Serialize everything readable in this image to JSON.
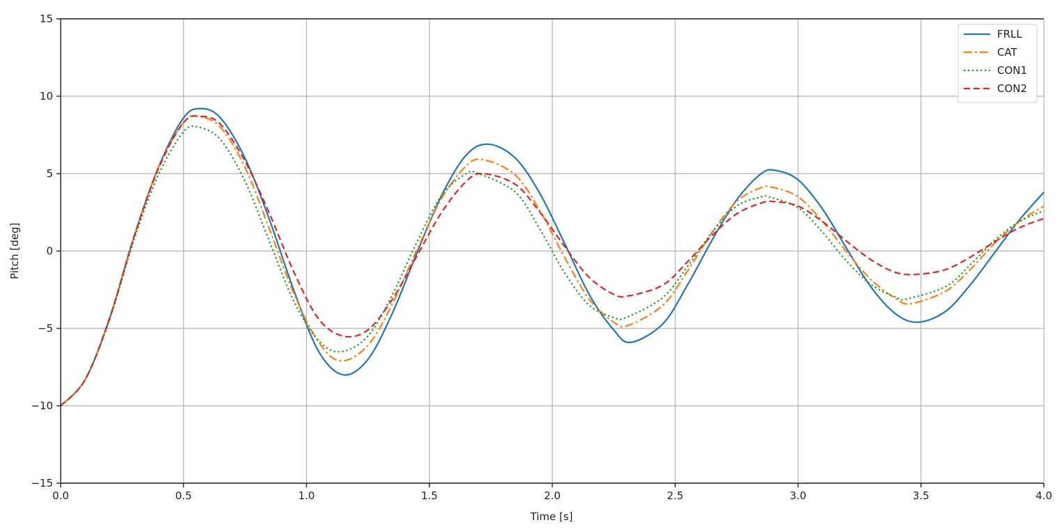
{
  "chart_data": {
    "type": "line",
    "title": "",
    "xlabel": "Time [s]",
    "ylabel": "Pitch [deg]",
    "xlim": [
      0.0,
      4.0
    ],
    "ylim": [
      -15,
      15
    ],
    "xticks": [
      0.0,
      0.5,
      1.0,
      1.5,
      2.0,
      2.5,
      3.0,
      3.5,
      4.0
    ],
    "xtick_labels": [
      "0.0",
      "0.5",
      "1.0",
      "1.5",
      "2.0",
      "2.5",
      "3.0",
      "3.5",
      "4.0"
    ],
    "yticks": [
      -15,
      -10,
      -5,
      0,
      5,
      10,
      15
    ],
    "ytick_labels": [
      "−15",
      "−10",
      "−5",
      "0",
      "5",
      "10",
      "15"
    ],
    "grid": true,
    "legend_position": "top-right",
    "series": [
      {
        "name": "FRLL",
        "color": "#1f77b4",
        "dash": "solid",
        "x": [
          0.0,
          0.1,
          0.2,
          0.3,
          0.4,
          0.5,
          0.57,
          0.65,
          0.75,
          0.85,
          0.95,
          1.05,
          1.15,
          1.25,
          1.35,
          1.45,
          1.55,
          1.65,
          1.74,
          1.85,
          1.95,
          2.05,
          2.15,
          2.25,
          2.32,
          2.45,
          2.55,
          2.65,
          2.75,
          2.85,
          2.91,
          3.0,
          3.1,
          3.2,
          3.3,
          3.4,
          3.49,
          3.6,
          3.7,
          3.8,
          3.9,
          4.0
        ],
        "y": [
          -10.0,
          -8.3,
          -4.3,
          1.0,
          5.5,
          8.6,
          9.2,
          8.6,
          6.0,
          2.0,
          -2.6,
          -6.5,
          -8.0,
          -7.0,
          -4.0,
          -0.1,
          3.6,
          6.2,
          6.9,
          6.0,
          3.7,
          0.5,
          -2.8,
          -5.1,
          -5.9,
          -4.7,
          -2.2,
          0.7,
          3.3,
          5.0,
          5.2,
          4.6,
          2.7,
          0.1,
          -2.4,
          -4.1,
          -4.6,
          -3.9,
          -2.2,
          -0.1,
          2.0,
          3.8
        ]
      },
      {
        "name": "CAT",
        "color": "#ff7f0e",
        "dash": "dashdot",
        "x": [
          0.0,
          0.1,
          0.2,
          0.3,
          0.4,
          0.5,
          0.56,
          0.65,
          0.75,
          0.85,
          0.95,
          1.05,
          1.14,
          1.25,
          1.35,
          1.45,
          1.55,
          1.65,
          1.72,
          1.85,
          1.95,
          2.05,
          2.15,
          2.25,
          2.31,
          2.45,
          2.55,
          2.65,
          2.75,
          2.85,
          2.9,
          3.0,
          3.1,
          3.2,
          3.3,
          3.4,
          3.46,
          3.6,
          3.7,
          3.8,
          3.9,
          4.0
        ],
        "y": [
          -10.0,
          -8.3,
          -4.3,
          1.0,
          5.5,
          8.3,
          8.7,
          8.0,
          5.4,
          1.4,
          -2.8,
          -5.9,
          -7.1,
          -6.1,
          -3.4,
          0.1,
          3.4,
          5.5,
          5.9,
          4.9,
          2.6,
          -0.4,
          -3.1,
          -4.6,
          -4.8,
          -3.5,
          -1.3,
          1.2,
          3.2,
          4.1,
          4.1,
          3.5,
          1.9,
          -0.1,
          -1.9,
          -3.1,
          -3.4,
          -2.6,
          -1.2,
          0.5,
          1.9,
          2.9
        ]
      },
      {
        "name": "CON1",
        "color": "#2ca02c",
        "dash": "dotted",
        "x": [
          0.0,
          0.1,
          0.2,
          0.3,
          0.4,
          0.5,
          0.56,
          0.65,
          0.75,
          0.85,
          0.95,
          1.05,
          1.14,
          1.25,
          1.35,
          1.45,
          1.55,
          1.65,
          1.7,
          1.85,
          1.95,
          2.05,
          2.15,
          2.25,
          2.3,
          2.45,
          2.55,
          2.65,
          2.75,
          2.85,
          2.88,
          3.0,
          3.1,
          3.2,
          3.3,
          3.4,
          3.44,
          3.6,
          3.7,
          3.8,
          3.9,
          4.0
        ],
        "y": [
          -10.0,
          -8.3,
          -4.4,
          0.8,
          5.0,
          7.7,
          8.0,
          7.2,
          4.5,
          0.6,
          -3.3,
          -5.8,
          -6.5,
          -5.5,
          -2.8,
          0.6,
          3.6,
          5.0,
          5.0,
          3.8,
          1.4,
          -1.4,
          -3.5,
          -4.3,
          -4.3,
          -3.0,
          -1.0,
          1.2,
          2.9,
          3.5,
          3.5,
          2.8,
          1.2,
          -0.7,
          -2.2,
          -3.0,
          -3.1,
          -2.3,
          -0.9,
          0.7,
          1.9,
          2.6
        ]
      },
      {
        "name": "CON2",
        "color": "#d62728",
        "dash": "dashed",
        "x": [
          0.0,
          0.1,
          0.2,
          0.3,
          0.4,
          0.5,
          0.57,
          0.65,
          0.75,
          0.85,
          0.95,
          1.05,
          1.15,
          1.25,
          1.35,
          1.45,
          1.55,
          1.65,
          1.72,
          1.85,
          1.95,
          2.05,
          2.15,
          2.25,
          2.31,
          2.45,
          2.55,
          2.65,
          2.75,
          2.85,
          2.9,
          3.0,
          3.1,
          3.2,
          3.3,
          3.4,
          3.49,
          3.6,
          3.7,
          3.8,
          3.9,
          4.0
        ],
        "y": [
          -10.0,
          -8.3,
          -4.3,
          1.0,
          5.4,
          8.3,
          8.7,
          8.2,
          5.8,
          2.4,
          -1.4,
          -4.4,
          -5.5,
          -5.1,
          -3.1,
          -0.3,
          2.5,
          4.5,
          5.0,
          4.3,
          2.5,
          0.3,
          -1.7,
          -2.8,
          -2.9,
          -2.2,
          -0.7,
          1.0,
          2.4,
          3.1,
          3.2,
          2.9,
          1.9,
          0.6,
          -0.6,
          -1.4,
          -1.5,
          -1.2,
          -0.4,
          0.6,
          1.5,
          2.1
        ]
      }
    ]
  }
}
